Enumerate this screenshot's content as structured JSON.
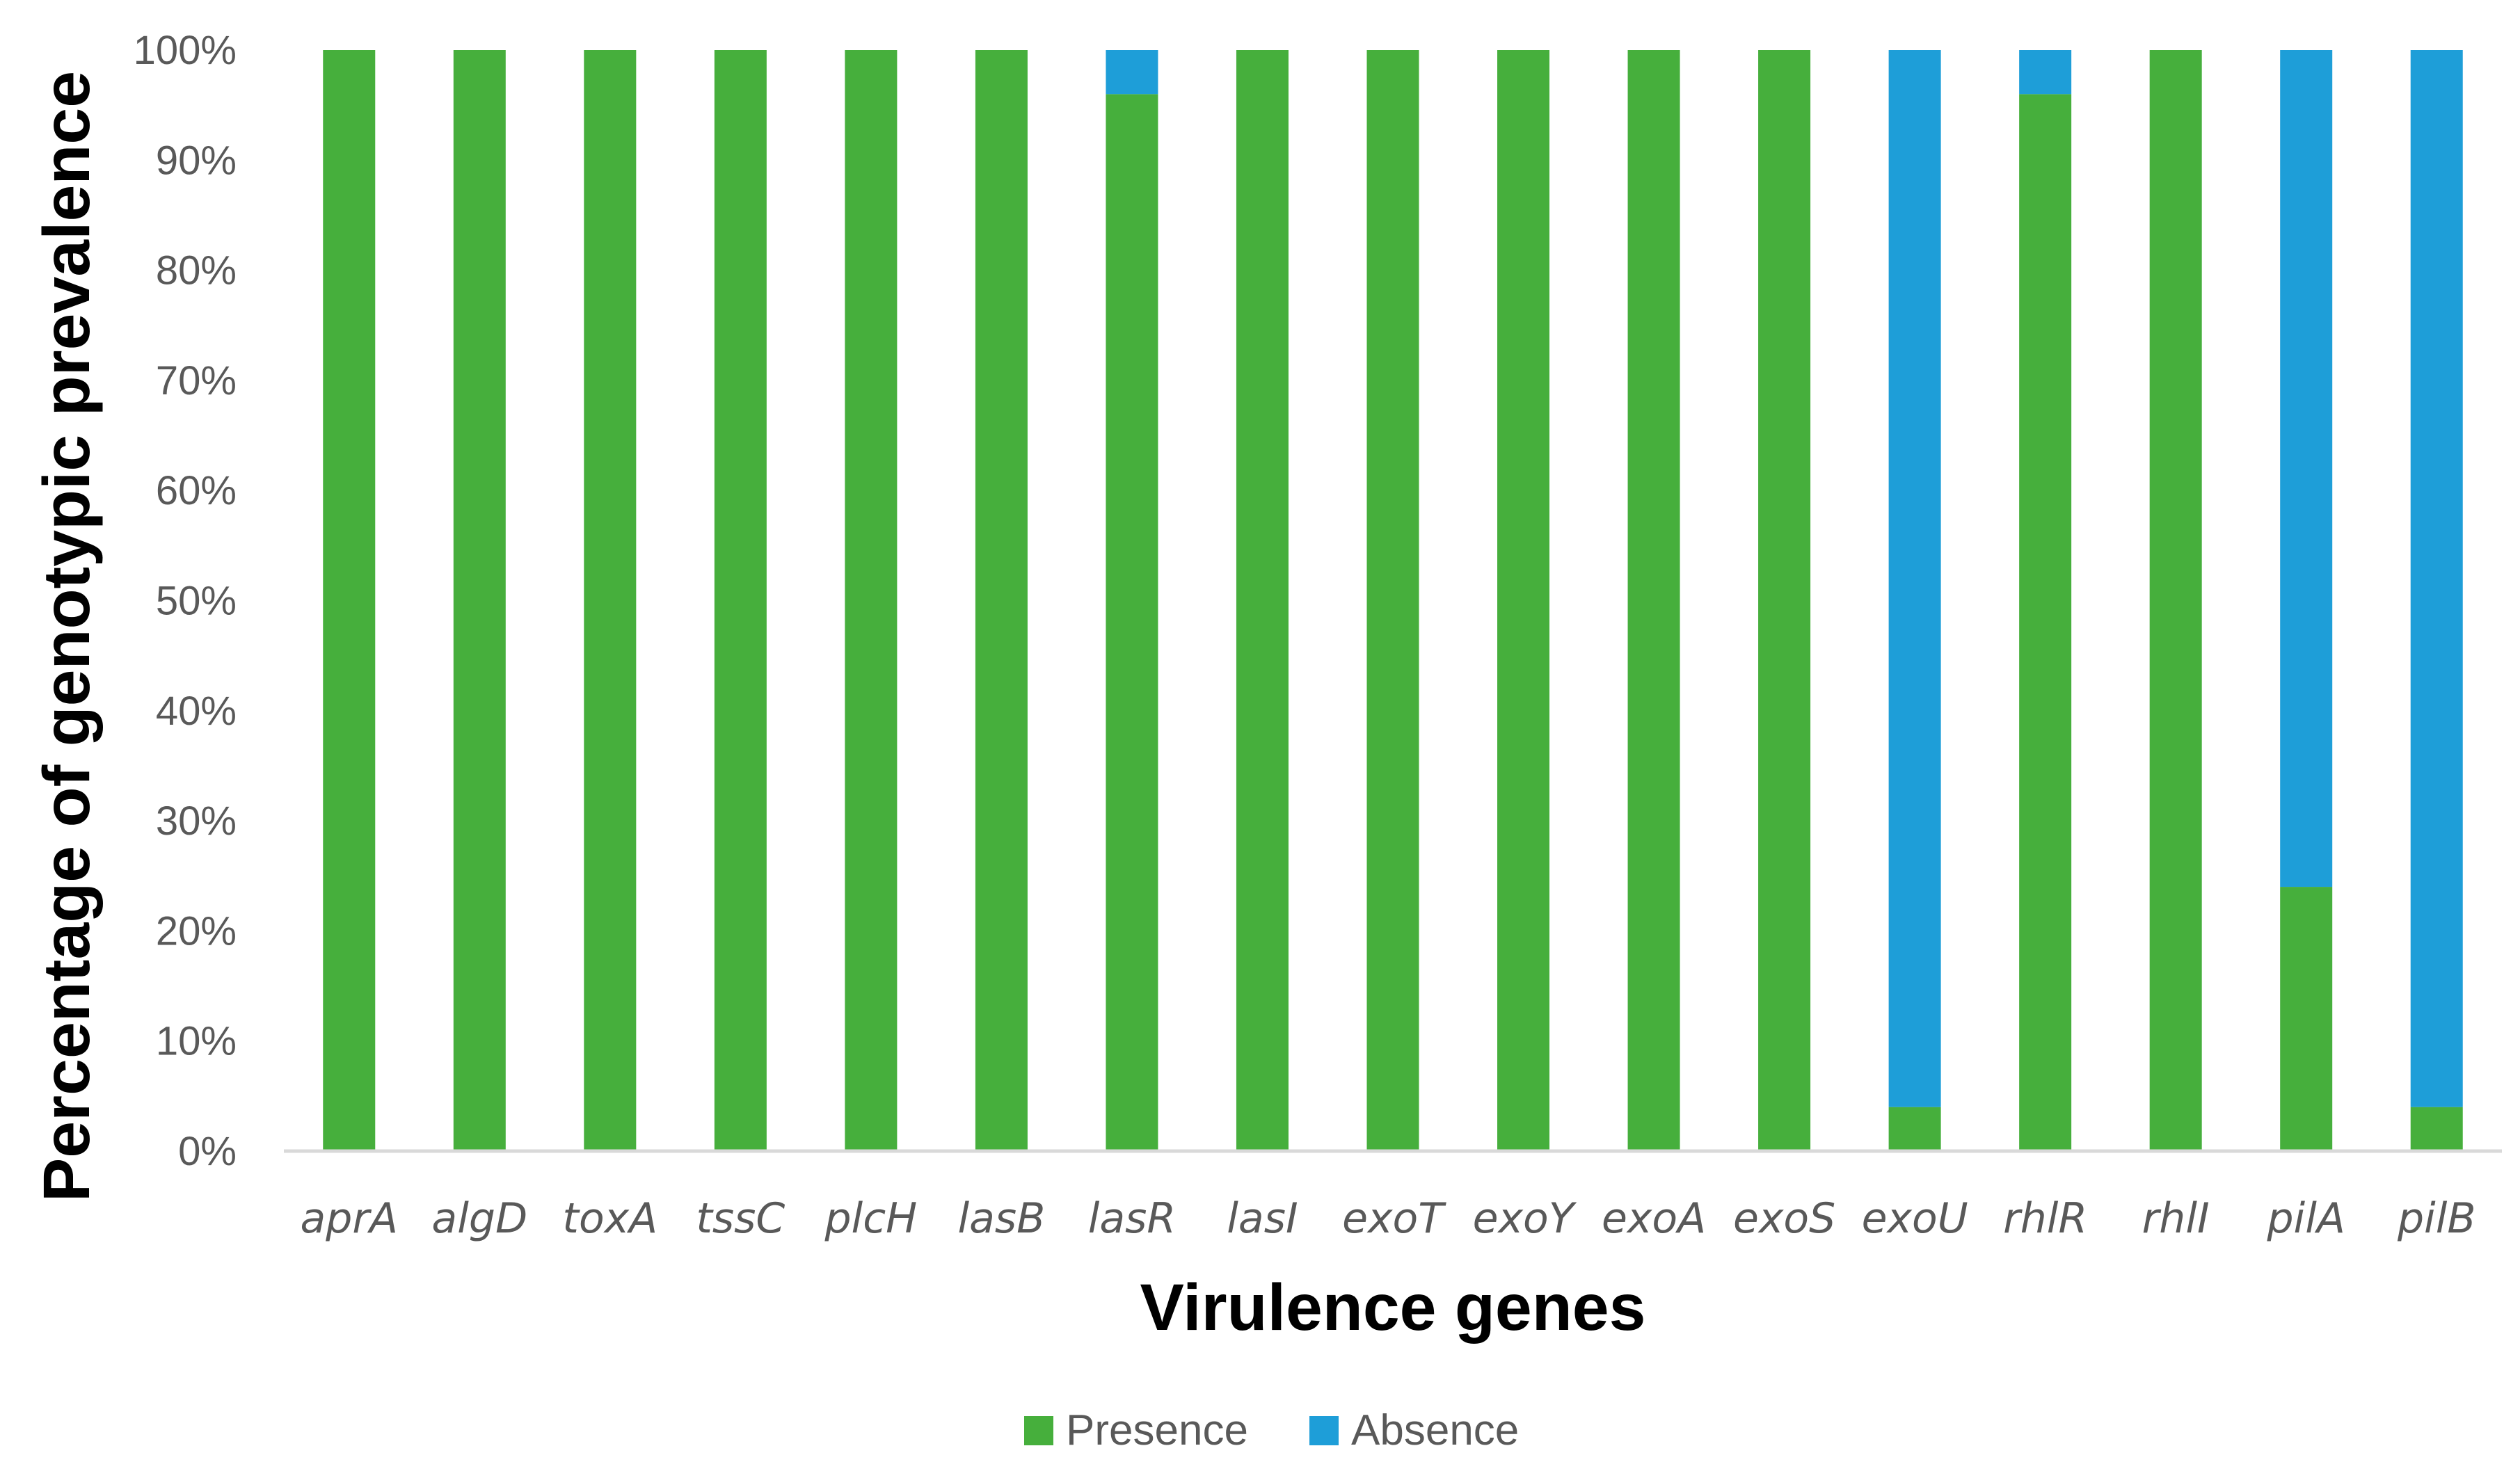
{
  "chart_data": {
    "type": "bar",
    "stacked": true,
    "title": "",
    "xlabel": "Virulence genes",
    "ylabel": "Percentage of genotypic prevalence",
    "ylim": [
      0,
      100
    ],
    "yticks": [
      "0%",
      "10%",
      "20%",
      "30%",
      "40%",
      "50%",
      "60%",
      "70%",
      "80%",
      "90%",
      "100%"
    ],
    "categories": [
      "aprA",
      "algD",
      "toxA",
      "tssC",
      "plcH",
      "lasB",
      "lasR",
      "lasI",
      "exoT",
      "exoY",
      "exoA",
      "exoS",
      "exoU",
      "rhlR",
      "rhlI",
      "pilA",
      "pilB"
    ],
    "series": [
      {
        "name": "Presence",
        "color": "#46AF3C",
        "values": [
          100,
          100,
          100,
          100,
          100,
          100,
          96,
          100,
          100,
          100,
          100,
          100,
          4,
          96,
          100,
          24,
          4
        ]
      },
      {
        "name": "Absence",
        "color": "#1E9ED8",
        "values": [
          0,
          0,
          0,
          0,
          0,
          0,
          4,
          0,
          0,
          0,
          0,
          0,
          96,
          4,
          0,
          76,
          96
        ]
      }
    ],
    "grid": false,
    "legend_position": "bottom"
  }
}
